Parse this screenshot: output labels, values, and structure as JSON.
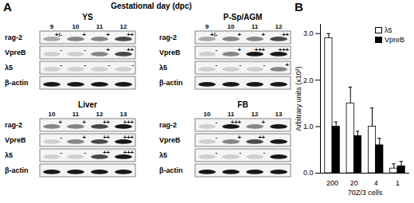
{
  "panel_a": {
    "label": "A",
    "header": "Gestational day (dpc)",
    "rows": [
      "rag-2",
      "VpreB",
      "λ5",
      "β-actin"
    ],
    "groups": [
      {
        "name": "YS",
        "days": [
          9,
          10,
          11,
          12
        ],
        "scores": [
          [
            "+/-",
            "+",
            "+",
            "++"
          ],
          [
            "-",
            "-",
            "+",
            "++"
          ],
          [
            "-",
            "-",
            "-",
            "-"
          ],
          [
            null,
            null,
            null,
            null
          ]
        ]
      },
      {
        "name": "P-Sp/AGM",
        "days": [
          9,
          10,
          11,
          12
        ],
        "scores": [
          [
            "+/-",
            "+",
            "+",
            "++"
          ],
          [
            "-",
            "+",
            "+++",
            "+++"
          ],
          [
            "-",
            "-",
            "-",
            "+"
          ],
          [
            null,
            null,
            null,
            null
          ]
        ]
      },
      {
        "name": "Liver",
        "days": [
          10,
          11,
          12,
          13
        ],
        "scores": [
          [
            "+",
            "+",
            "++",
            "+++"
          ],
          [
            "-",
            "+",
            "++",
            "+++"
          ],
          [
            "-",
            "-",
            "++",
            "+++"
          ],
          [
            null,
            null,
            null,
            null
          ]
        ]
      },
      {
        "name": "FB",
        "days": [
          10,
          11,
          12,
          13
        ],
        "scores": [
          [
            "-",
            "+++",
            "+",
            null
          ],
          [
            "-",
            "+",
            "++",
            null
          ],
          [
            "-",
            "-",
            "-",
            null
          ],
          [
            null,
            null,
            null,
            null
          ]
        ]
      }
    ]
  },
  "chart_data": {
    "type": "bar",
    "title": "B",
    "x_label": "70Z/3 cells",
    "y_label": "Arbitrary units (x10³)",
    "categories": [
      "200",
      "20",
      "4",
      "1"
    ],
    "series": [
      {
        "name": "λ5",
        "color": "#ffffff",
        "values": [
          2.9,
          1.5,
          1.0,
          0.1
        ],
        "errors": [
          0.1,
          0.35,
          0.4,
          0.1
        ]
      },
      {
        "name": "VpreB",
        "color": "#000000",
        "values": [
          1.0,
          0.8,
          0.6,
          0.15
        ],
        "errors": [
          0.1,
          0.1,
          0.15,
          0.1
        ]
      }
    ],
    "ylim": [
      0,
      3.2
    ],
    "yticks": [
      0,
      1,
      2,
      3
    ],
    "grid": false,
    "legend": "top-right"
  }
}
